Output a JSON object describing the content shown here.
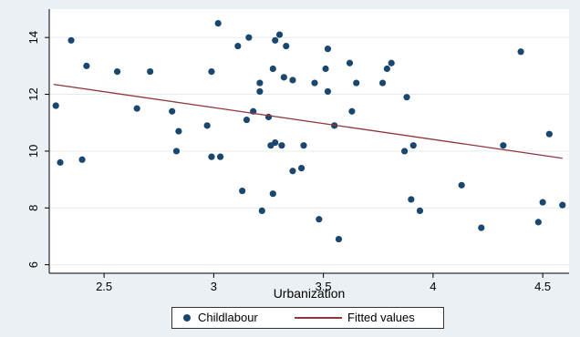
{
  "chart_data": {
    "type": "scatter",
    "xlabel": "Urbanization",
    "ylabel": "",
    "xlim": [
      2.25,
      4.62
    ],
    "ylim": [
      5.7,
      15.0
    ],
    "xticks": [
      2.5,
      3,
      3.5,
      4,
      4.5
    ],
    "xtick_labels": [
      "2.5",
      "3",
      "3.5",
      "4",
      "4.5"
    ],
    "yticks": [
      6,
      8,
      10,
      12,
      14
    ],
    "ytick_labels": [
      "6",
      "8",
      "10",
      "12",
      "14"
    ],
    "grid": true,
    "legend_position": "bottom",
    "series": [
      {
        "name": "Childlabour",
        "kind": "scatter",
        "color": "#1a476f",
        "points": [
          [
            2.28,
            11.6
          ],
          [
            2.3,
            9.6
          ],
          [
            2.35,
            13.9
          ],
          [
            2.4,
            9.7
          ],
          [
            2.42,
            13.0
          ],
          [
            2.56,
            12.8
          ],
          [
            2.65,
            11.5
          ],
          [
            2.71,
            12.8
          ],
          [
            2.81,
            11.4
          ],
          [
            2.83,
            10.0
          ],
          [
            2.84,
            10.7
          ],
          [
            2.97,
            10.9
          ],
          [
            2.99,
            12.8
          ],
          [
            2.99,
            9.8
          ],
          [
            3.02,
            14.5
          ],
          [
            3.03,
            9.8
          ],
          [
            3.11,
            13.7
          ],
          [
            3.13,
            8.6
          ],
          [
            3.15,
            11.1
          ],
          [
            3.16,
            14.0
          ],
          [
            3.18,
            11.4
          ],
          [
            3.21,
            12.1
          ],
          [
            3.21,
            12.4
          ],
          [
            3.22,
            7.9
          ],
          [
            3.25,
            11.2
          ],
          [
            3.26,
            10.2
          ],
          [
            3.27,
            8.5
          ],
          [
            3.27,
            12.9
          ],
          [
            3.28,
            13.9
          ],
          [
            3.28,
            10.3
          ],
          [
            3.3,
            14.1
          ],
          [
            3.31,
            10.2
          ],
          [
            3.32,
            12.6
          ],
          [
            3.33,
            13.7
          ],
          [
            3.36,
            9.3
          ],
          [
            3.36,
            12.5
          ],
          [
            3.4,
            9.4
          ],
          [
            3.41,
            10.2
          ],
          [
            3.46,
            12.4
          ],
          [
            3.48,
            7.6
          ],
          [
            3.51,
            12.9
          ],
          [
            3.52,
            13.6
          ],
          [
            3.52,
            12.1
          ],
          [
            3.55,
            10.9
          ],
          [
            3.57,
            6.9
          ],
          [
            3.62,
            13.1
          ],
          [
            3.63,
            11.4
          ],
          [
            3.65,
            12.4
          ],
          [
            3.77,
            12.4
          ],
          [
            3.79,
            12.9
          ],
          [
            3.81,
            13.1
          ],
          [
            3.87,
            10.0
          ],
          [
            3.88,
            11.9
          ],
          [
            3.9,
            8.3
          ],
          [
            3.91,
            10.2
          ],
          [
            3.94,
            7.9
          ],
          [
            4.13,
            8.8
          ],
          [
            4.22,
            7.3
          ],
          [
            4.32,
            10.2
          ],
          [
            4.4,
            13.5
          ],
          [
            4.48,
            7.5
          ],
          [
            4.5,
            8.2
          ],
          [
            4.53,
            10.6
          ],
          [
            4.59,
            8.1
          ]
        ]
      },
      {
        "name": "Fitted values",
        "kind": "line",
        "color": "#90353b",
        "points": [
          [
            2.27,
            12.35
          ],
          [
            4.59,
            9.75
          ]
        ]
      }
    ]
  }
}
